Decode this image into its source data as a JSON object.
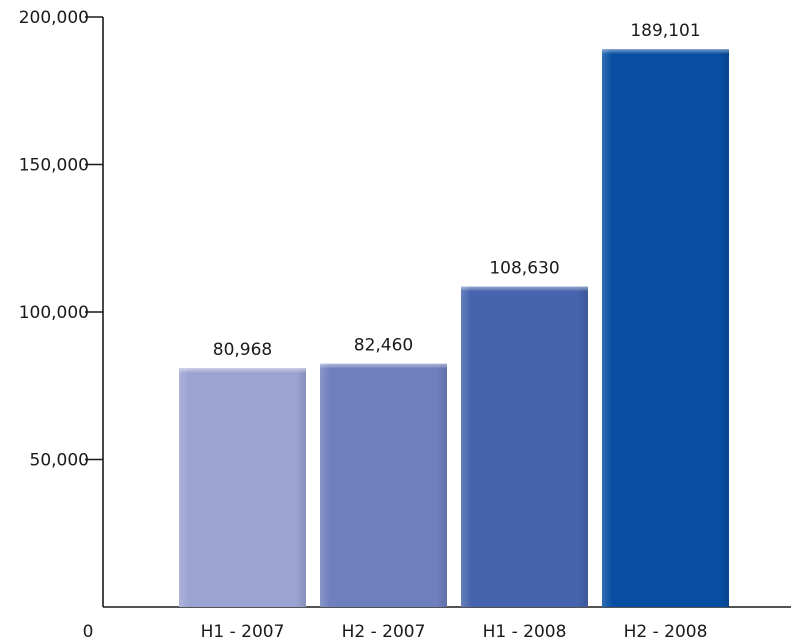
{
  "chart_data": {
    "type": "bar",
    "title": "",
    "xlabel": "",
    "ylabel": "",
    "categories": [
      "H1 - 2007",
      "H2 - 2007",
      "H1 - 2008",
      "H2 - 2008"
    ],
    "values": [
      80968,
      82460,
      108630,
      189101
    ],
    "value_labels": [
      "80,968",
      "82,460",
      "108,630",
      "189,101"
    ],
    "ylim": [
      0,
      200000
    ],
    "y_ticks": [
      0,
      50000,
      100000,
      150000,
      200000
    ],
    "y_tick_labels": [
      "0",
      "50,000",
      "100,000",
      "150,000",
      "200,000"
    ],
    "grid": false,
    "bar_colors": [
      "#9ba3d3",
      "#6e7fbd",
      "#4564ad",
      "#074ea2"
    ]
  }
}
